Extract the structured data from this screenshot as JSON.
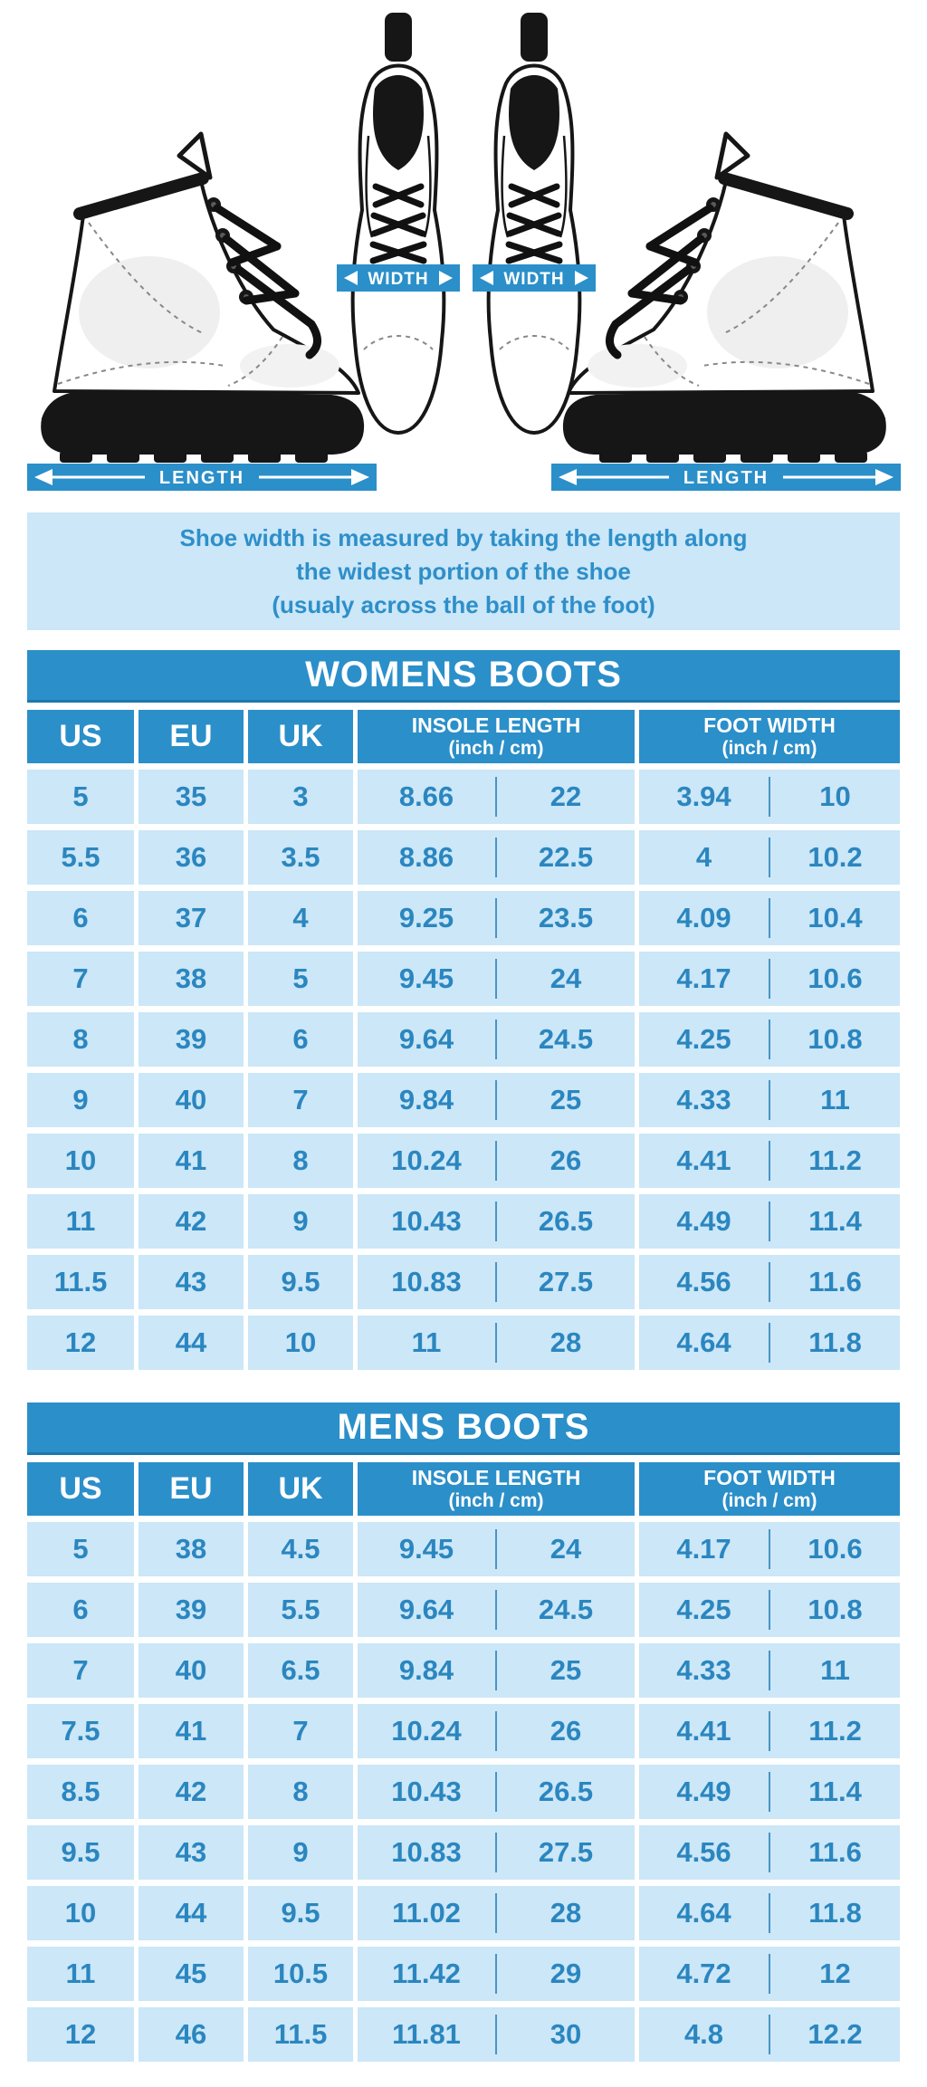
{
  "colors": {
    "accent_blue": "#2b8fc9",
    "light_blue_cell": "#cbe7f8",
    "value_text_blue": "#2b86bf",
    "boot_dark": "#161616"
  },
  "hero": {
    "width_label": "WIDTH",
    "length_label": "LENGTH"
  },
  "note": {
    "line1": "Shoe width is measured by taking the length along",
    "line2": "the widest portion of the shoe",
    "line3": "(usualy across the ball of the foot)"
  },
  "chart_data": [
    {
      "type": "table",
      "title": "WOMENS BOOTS",
      "columns": [
        "US",
        "EU",
        "UK",
        "INSOLE LENGTH",
        "FOOT WIDTH"
      ],
      "unit_subheader": "(inch / cm)",
      "rows": [
        [
          "5",
          "35",
          "3",
          "8.66",
          "22",
          "3.94",
          "10"
        ],
        [
          "5.5",
          "36",
          "3.5",
          "8.86",
          "22.5",
          "4",
          "10.2"
        ],
        [
          "6",
          "37",
          "4",
          "9.25",
          "23.5",
          "4.09",
          "10.4"
        ],
        [
          "7",
          "38",
          "5",
          "9.45",
          "24",
          "4.17",
          "10.6"
        ],
        [
          "8",
          "39",
          "6",
          "9.64",
          "24.5",
          "4.25",
          "10.8"
        ],
        [
          "9",
          "40",
          "7",
          "9.84",
          "25",
          "4.33",
          "11"
        ],
        [
          "10",
          "41",
          "8",
          "10.24",
          "26",
          "4.41",
          "11.2"
        ],
        [
          "11",
          "42",
          "9",
          "10.43",
          "26.5",
          "4.49",
          "11.4"
        ],
        [
          "11.5",
          "43",
          "9.5",
          "10.83",
          "27.5",
          "4.56",
          "11.6"
        ],
        [
          "12",
          "44",
          "10",
          "11",
          "28",
          "4.64",
          "11.8"
        ]
      ]
    },
    {
      "type": "table",
      "title": "MENS BOOTS",
      "columns": [
        "US",
        "EU",
        "UK",
        "INSOLE LENGTH",
        "FOOT WIDTH"
      ],
      "unit_subheader": "(inch / cm)",
      "rows": [
        [
          "5",
          "38",
          "4.5",
          "9.45",
          "24",
          "4.17",
          "10.6"
        ],
        [
          "6",
          "39",
          "5.5",
          "9.64",
          "24.5",
          "4.25",
          "10.8"
        ],
        [
          "7",
          "40",
          "6.5",
          "9.84",
          "25",
          "4.33",
          "11"
        ],
        [
          "7.5",
          "41",
          "7",
          "10.24",
          "26",
          "4.41",
          "11.2"
        ],
        [
          "8.5",
          "42",
          "8",
          "10.43",
          "26.5",
          "4.49",
          "11.4"
        ],
        [
          "9.5",
          "43",
          "9",
          "10.83",
          "27.5",
          "4.56",
          "11.6"
        ],
        [
          "10",
          "44",
          "9.5",
          "11.02",
          "28",
          "4.64",
          "11.8"
        ],
        [
          "11",
          "45",
          "10.5",
          "11.42",
          "29",
          "4.72",
          "12"
        ],
        [
          "12",
          "46",
          "11.5",
          "11.81",
          "30",
          "4.8",
          "12.2"
        ]
      ]
    }
  ]
}
